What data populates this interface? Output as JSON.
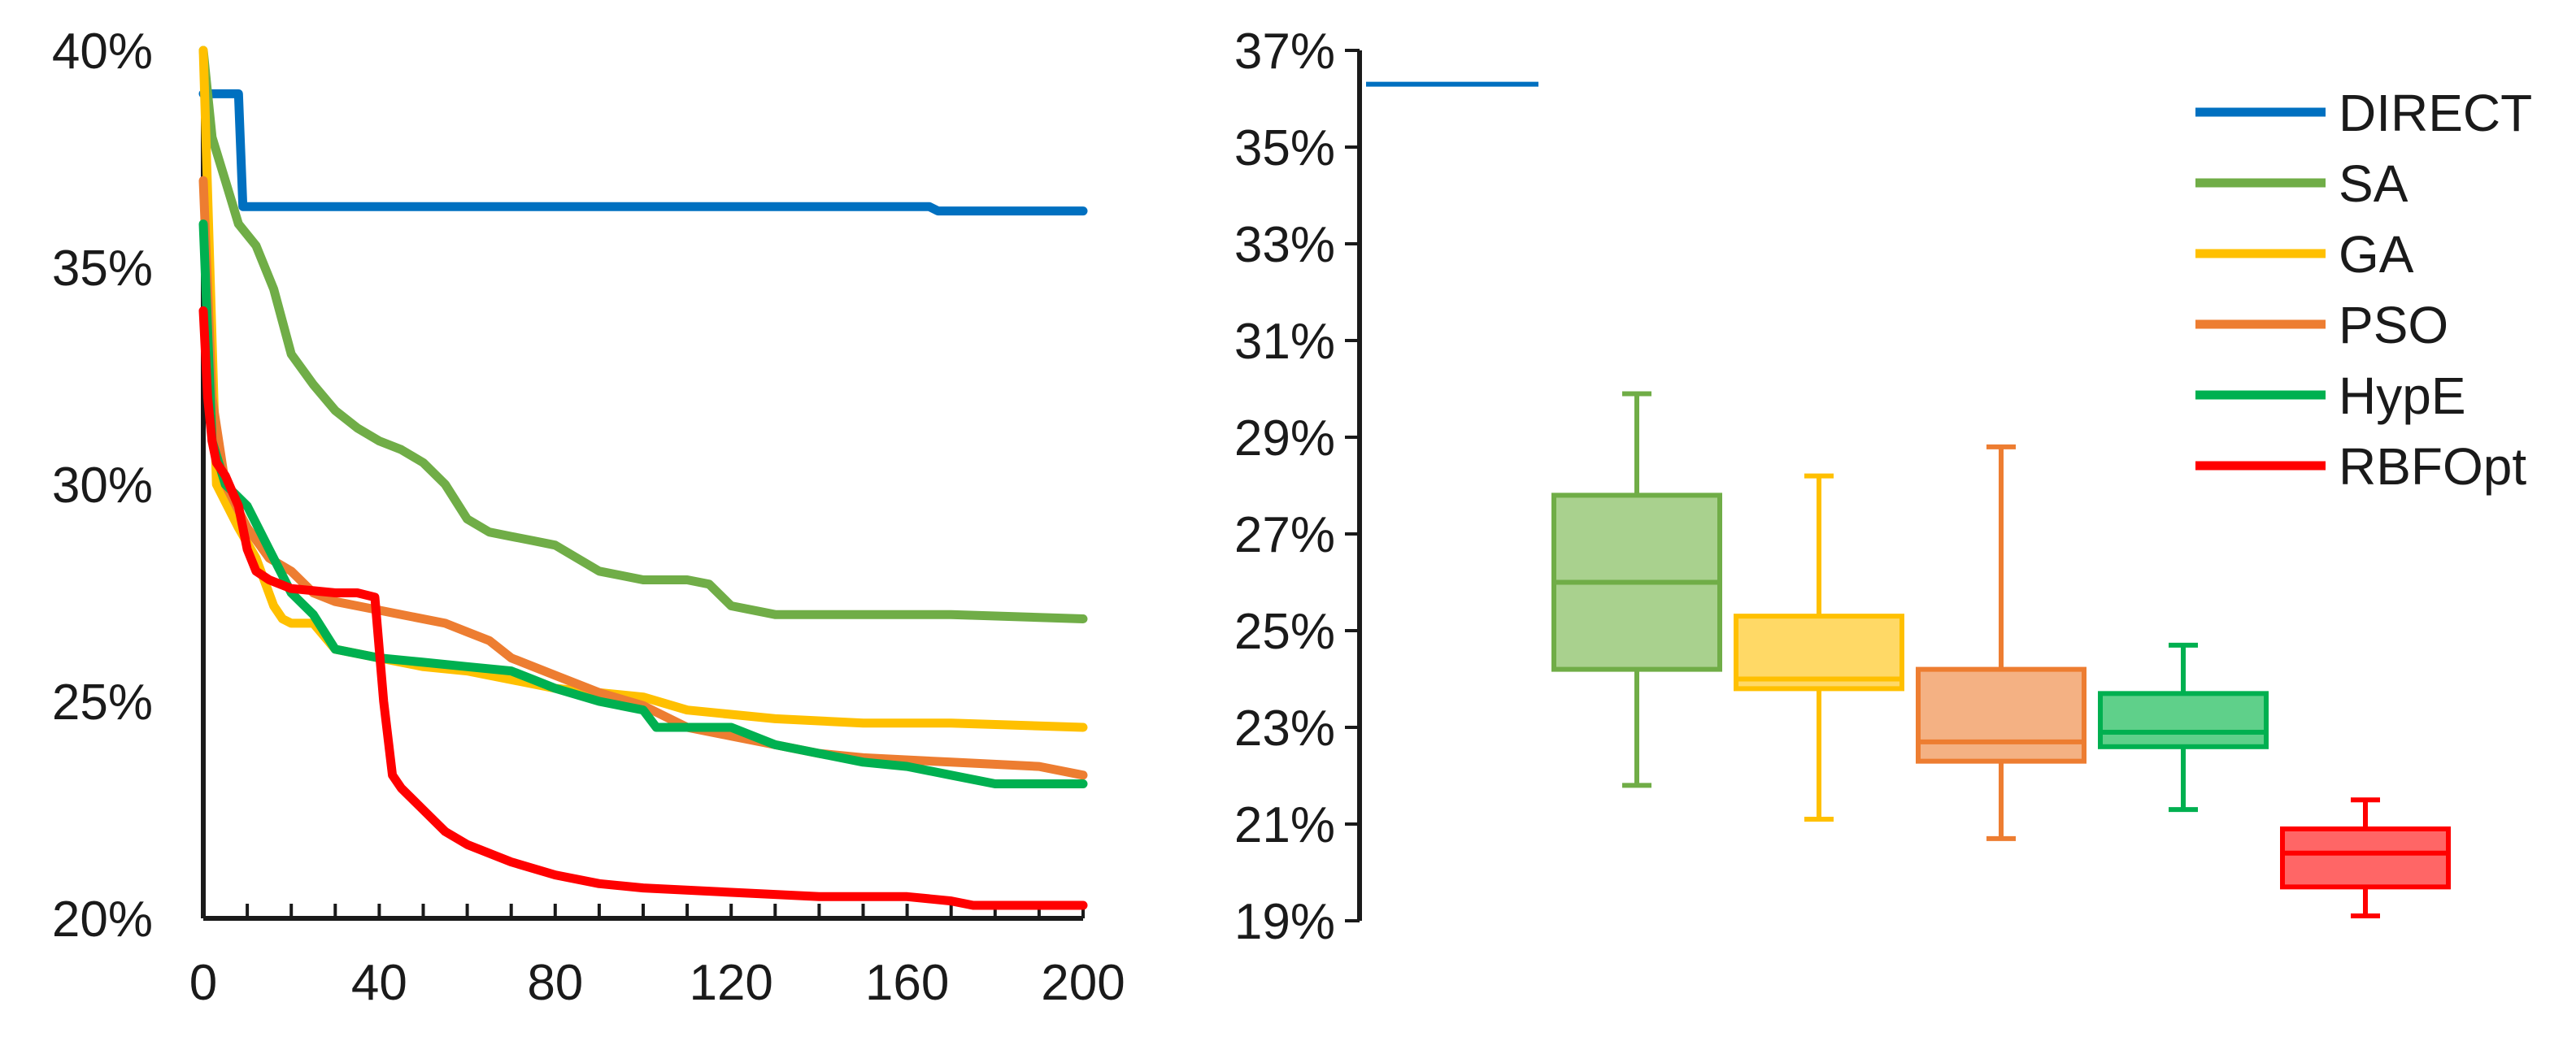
{
  "chart_data": [
    {
      "type": "line",
      "x_ticks": [
        "0",
        "40",
        "80",
        "120",
        "160",
        "200"
      ],
      "y_ticks": [
        "20%",
        "25%",
        "30%",
        "35%",
        "40%"
      ],
      "xlim": [
        0,
        200
      ],
      "ylim": [
        20,
        40
      ],
      "grid": false,
      "series": [
        {
          "name": "DIRECT",
          "color": "#0070C0",
          "x": [
            0,
            1,
            8,
            9,
            165,
            167,
            200
          ],
          "y": [
            39.0,
            39.0,
            39.0,
            36.4,
            36.4,
            36.3,
            36.3
          ]
        },
        {
          "name": "SA",
          "color": "#70AD47",
          "x": [
            0,
            2,
            5,
            8,
            12,
            16,
            20,
            25,
            30,
            35,
            40,
            45,
            50,
            55,
            60,
            65,
            70,
            75,
            80,
            85,
            90,
            95,
            100,
            110,
            115,
            120,
            130,
            150,
            170,
            200
          ],
          "y": [
            40.0,
            38.0,
            37.0,
            36.0,
            35.5,
            34.5,
            33.0,
            32.3,
            31.7,
            31.3,
            31.0,
            30.8,
            30.5,
            30.0,
            29.2,
            28.9,
            28.8,
            28.7,
            28.6,
            28.3,
            28.0,
            27.9,
            27.8,
            27.8,
            27.7,
            27.2,
            27.0,
            27.0,
            27.0,
            26.9
          ]
        },
        {
          "name": "GA",
          "color": "#FFC000",
          "x": [
            0,
            3,
            8,
            12,
            16,
            18,
            20,
            25,
            30,
            40,
            50,
            60,
            80,
            100,
            110,
            130,
            150,
            170,
            200
          ],
          "y": [
            40.0,
            30.0,
            29.0,
            28.3,
            27.2,
            26.9,
            26.8,
            26.8,
            26.2,
            26.0,
            25.8,
            25.7,
            25.3,
            25.1,
            24.8,
            24.6,
            24.5,
            24.5,
            24.4
          ]
        },
        {
          "name": "PSO",
          "color": "#ED7D31",
          "x": [
            0,
            2,
            5,
            10,
            15,
            20,
            25,
            30,
            40,
            55,
            60,
            65,
            70,
            80,
            90,
            100,
            110,
            120,
            130,
            140,
            150,
            170,
            190,
            200
          ],
          "y": [
            37.0,
            32.0,
            30.0,
            29.0,
            28.3,
            28.0,
            27.5,
            27.3,
            27.1,
            26.8,
            26.6,
            26.4,
            26.0,
            25.6,
            25.2,
            24.9,
            24.4,
            24.2,
            24.0,
            23.8,
            23.7,
            23.6,
            23.5,
            23.3
          ]
        },
        {
          "name": "HypE",
          "color": "#00B050",
          "x": [
            0,
            2,
            5,
            10,
            15,
            20,
            25,
            30,
            40,
            50,
            60,
            70,
            75,
            80,
            90,
            100,
            103,
            120,
            130,
            140,
            150,
            160,
            170,
            180,
            200
          ],
          "y": [
            36.0,
            31.0,
            30.0,
            29.5,
            28.5,
            27.5,
            27.0,
            26.2,
            26.0,
            25.9,
            25.8,
            25.7,
            25.5,
            25.3,
            25.0,
            24.8,
            24.4,
            24.4,
            24.0,
            23.8,
            23.6,
            23.5,
            23.3,
            23.1,
            23.1
          ]
        },
        {
          "name": "RBFOpt",
          "color": "#FF0000",
          "x": [
            0,
            1,
            2,
            3,
            5,
            8,
            10,
            12,
            15,
            20,
            30,
            35,
            39,
            41,
            43,
            45,
            50,
            55,
            60,
            70,
            80,
            90,
            100,
            120,
            140,
            160,
            170,
            175,
            200
          ],
          "y": [
            34.0,
            32.0,
            31.0,
            30.5,
            30.2,
            29.5,
            28.5,
            28.0,
            27.8,
            27.6,
            27.5,
            27.5,
            27.4,
            25.0,
            23.3,
            23.0,
            22.5,
            22.0,
            21.7,
            21.3,
            21.0,
            20.8,
            20.7,
            20.6,
            20.5,
            20.5,
            20.4,
            20.3,
            20.3
          ]
        }
      ]
    },
    {
      "type": "box",
      "y_ticks": [
        "19%",
        "21%",
        "23%",
        "25%",
        "27%",
        "29%",
        "31%",
        "33%",
        "35%",
        "37%"
      ],
      "ylim": [
        19,
        37
      ],
      "grid": false,
      "legend_position": "top-right",
      "direct_line": {
        "name": "DIRECT",
        "color": "#0070C0",
        "value": 36.3
      },
      "boxes": [
        {
          "name": "SA",
          "color": "#70AD47",
          "fill": "#A9D18E",
          "whisker_low": 21.8,
          "q1": 24.2,
          "median": 26.0,
          "q3": 27.8,
          "whisker_high": 29.9
        },
        {
          "name": "GA",
          "color": "#FFC000",
          "fill": "#FFD966",
          "whisker_low": 21.1,
          "q1": 23.8,
          "median": 24.0,
          "q3": 25.3,
          "whisker_high": 28.2
        },
        {
          "name": "PSO",
          "color": "#ED7D31",
          "fill": "#F4B183",
          "whisker_low": 20.7,
          "q1": 22.3,
          "median": 22.7,
          "q3": 24.2,
          "whisker_high": 28.8
        },
        {
          "name": "HypE",
          "color": "#00B050",
          "fill": "#5FD08A",
          "whisker_low": 21.3,
          "q1": 22.6,
          "median": 22.9,
          "q3": 23.7,
          "whisker_high": 24.7
        },
        {
          "name": "RBFOpt",
          "color": "#FF0000",
          "fill": "#FF6666",
          "whisker_low": 19.1,
          "q1": 19.7,
          "median": 20.4,
          "q3": 20.9,
          "whisker_high": 21.5
        }
      ]
    }
  ],
  "legend": {
    "items": [
      {
        "label": "DIRECT",
        "color": "#0070C0"
      },
      {
        "label": "SA",
        "color": "#70AD47"
      },
      {
        "label": "GA",
        "color": "#FFC000"
      },
      {
        "label": "PSO",
        "color": "#ED7D31"
      },
      {
        "label": "HypE",
        "color": "#00B050"
      },
      {
        "label": "RBFOpt",
        "color": "#FF0000"
      }
    ]
  }
}
